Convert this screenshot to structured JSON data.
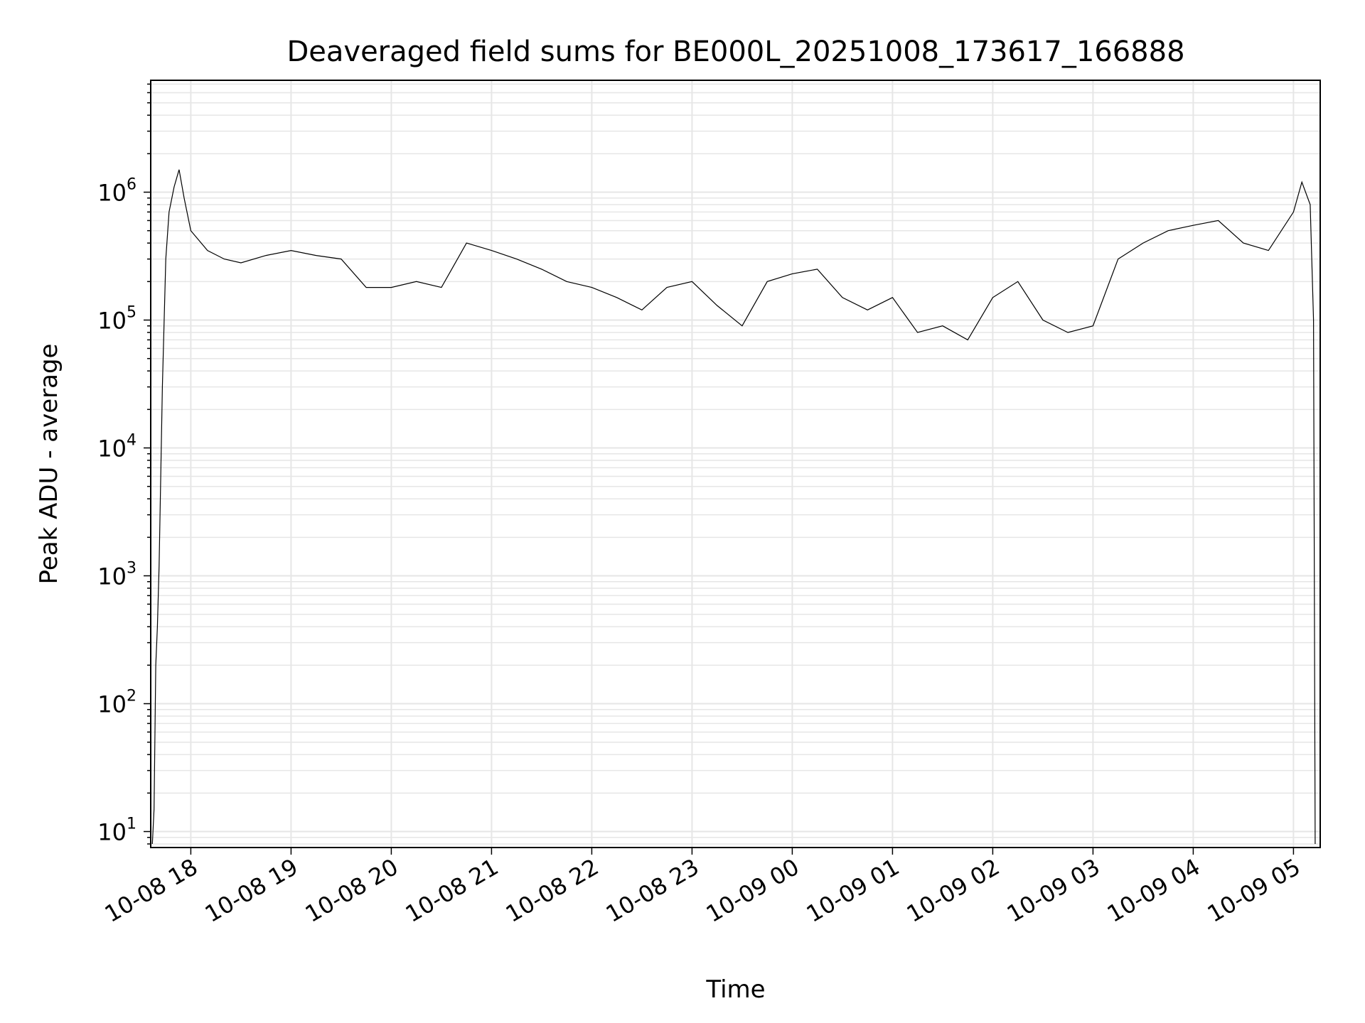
{
  "chart_data": {
    "type": "line",
    "title": "Deaveraged field sums for BE000L_20251008_173617_166888",
    "xlabel": "Time",
    "ylabel": "Peak ADU - average",
    "yscale": "log",
    "grid": true,
    "line_color": "#000000",
    "x_range": [
      "10-08 17:36",
      "10-09 05:16"
    ],
    "ylim": [
      7.5,
      7500000
    ],
    "x_ticks": [
      "10-08 18",
      "10-08 19",
      "10-08 20",
      "10-08 21",
      "10-08 22",
      "10-08 23",
      "10-09 00",
      "10-09 01",
      "10-09 02",
      "10-09 03",
      "10-09 04",
      "10-09 05"
    ],
    "y_ticks": [
      {
        "base": "10",
        "exp": "1",
        "value": 10
      },
      {
        "base": "10",
        "exp": "2",
        "value": 100
      },
      {
        "base": "10",
        "exp": "3",
        "value": 1000
      },
      {
        "base": "10",
        "exp": "4",
        "value": 10000
      },
      {
        "base": "10",
        "exp": "5",
        "value": 100000
      },
      {
        "base": "10",
        "exp": "6",
        "value": 1000000
      }
    ],
    "series": [
      {
        "x": [
          "10-08 17:37",
          "10-08 17:38",
          "10-08 17:39",
          "10-08 17:40",
          "10-08 17:41",
          "10-08 17:43",
          "10-08 17:45",
          "10-08 17:47",
          "10-08 17:50",
          "10-08 17:53",
          "10-08 17:56",
          "10-08 18:00",
          "10-08 18:10",
          "10-08 18:20",
          "10-08 18:30",
          "10-08 18:45",
          "10-08 19:00",
          "10-08 19:15",
          "10-08 19:30",
          "10-08 19:45",
          "10-08 20:00",
          "10-08 20:15",
          "10-08 20:30",
          "10-08 20:45",
          "10-08 21:00",
          "10-08 21:15",
          "10-08 21:30",
          "10-08 21:45",
          "10-08 22:00",
          "10-08 22:15",
          "10-08 22:30",
          "10-08 22:45",
          "10-08 23:00",
          "10-08 23:15",
          "10-08 23:30",
          "10-08 23:45",
          "10-09 00:00",
          "10-09 00:15",
          "10-09 00:30",
          "10-09 00:45",
          "10-09 01:00",
          "10-09 01:15",
          "10-09 01:30",
          "10-09 01:45",
          "10-09 02:00",
          "10-09 02:15",
          "10-09 02:30",
          "10-09 02:45",
          "10-09 03:00",
          "10-09 03:15",
          "10-09 03:30",
          "10-09 03:45",
          "10-09 04:00",
          "10-09 04:15",
          "10-09 04:30",
          "10-09 04:45",
          "10-09 05:00",
          "10-09 05:05",
          "10-09 05:10",
          "10-09 05:12",
          "10-09 05:13"
        ],
        "y": [
          8,
          15,
          200,
          400,
          1200,
          30000,
          300000,
          700000,
          1100000,
          1500000,
          900000,
          500000,
          350000,
          300000,
          280000,
          320000,
          350000,
          320000,
          300000,
          180000,
          180000,
          200000,
          180000,
          400000,
          350000,
          300000,
          250000,
          200000,
          180000,
          150000,
          120000,
          180000,
          200000,
          130000,
          90000,
          200000,
          230000,
          250000,
          150000,
          120000,
          150000,
          80000,
          90000,
          70000,
          150000,
          200000,
          100000,
          80000,
          90000,
          300000,
          400000,
          500000,
          550000,
          600000,
          400000,
          350000,
          700000,
          1200000,
          800000,
          100000,
          8
        ]
      }
    ]
  }
}
